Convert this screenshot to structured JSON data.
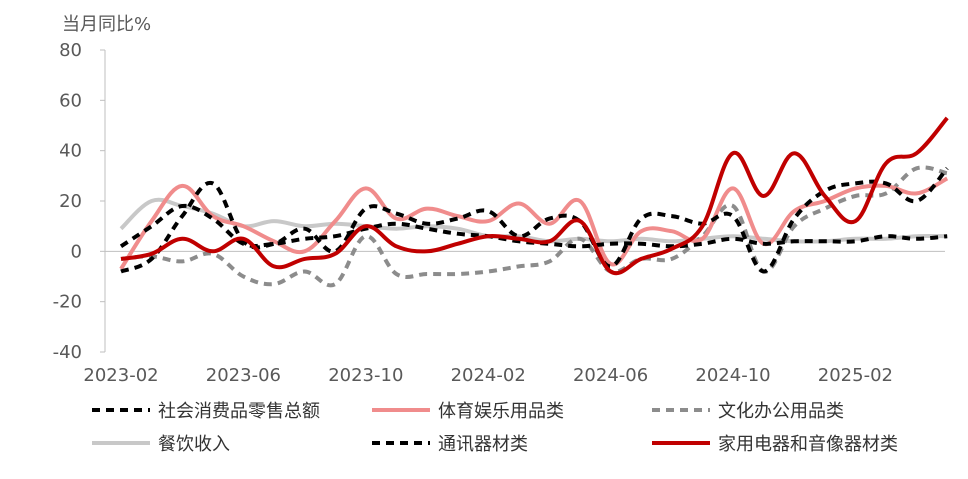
{
  "chart_data": {
    "type": "line",
    "ylabel": "当月同比%",
    "xlabel": "",
    "ylim": [
      -40,
      80
    ],
    "yticks": [
      -40,
      -20,
      0,
      20,
      40,
      60,
      80
    ],
    "x": [
      "2023-02",
      "2023-03",
      "2023-04",
      "2023-05",
      "2023-06",
      "2023-07",
      "2023-08",
      "2023-09",
      "2023-10",
      "2023-11",
      "2023-12",
      "2024-01",
      "2024-02",
      "2024-03",
      "2024-04",
      "2024-05",
      "2024-06",
      "2024-07",
      "2024-08",
      "2024-09",
      "2024-10",
      "2024-11",
      "2024-12",
      "2025-01",
      "2025-02",
      "2025-03",
      "2025-04",
      "2025-05"
    ],
    "xtick_labels": [
      "2023-02",
      "2023-06",
      "2023-10",
      "2024-02",
      "2024-06",
      "2024-10",
      "2025-02"
    ],
    "grid": false,
    "legend_position": "bottom",
    "series": [
      {
        "name": "社会消费品零售总额",
        "color": "#000000",
        "dash": "8,6",
        "width": 4,
        "values": [
          2,
          10,
          18,
          13,
          3,
          3,
          5,
          6,
          9,
          11,
          9,
          7,
          6,
          4,
          3,
          2,
          3,
          3,
          2,
          3,
          5,
          3,
          4,
          4,
          4,
          6,
          5,
          6
        ]
      },
      {
        "name": "体育娱乐用品类",
        "color": "#f08c8c",
        "dash": "",
        "width": 4,
        "values": [
          -7,
          12,
          26,
          14,
          10,
          4,
          0,
          12,
          25,
          13,
          17,
          14,
          12,
          19,
          11,
          20,
          -5,
          8,
          8,
          5,
          25,
          3,
          16,
          20,
          25,
          26,
          23,
          29
        ]
      },
      {
        "name": "文化办公用品类",
        "color": "#8c8c8c",
        "dash": "8,6",
        "width": 4,
        "values": [
          -3,
          -2,
          -4,
          -1,
          -10,
          -13,
          -8,
          -13,
          6,
          -9,
          -9,
          -9,
          -8,
          -6,
          -4,
          5,
          -8,
          -3,
          -3,
          6,
          18,
          -8,
          10,
          17,
          22,
          23,
          33,
          31
        ]
      },
      {
        "name": "餐饮收入",
        "color": "#c8c8c8",
        "dash": "",
        "width": 4,
        "values": [
          9,
          20,
          18,
          15,
          10,
          12,
          10,
          11,
          10,
          9,
          10,
          9,
          6,
          6,
          4,
          5,
          4,
          5,
          4,
          5,
          6,
          5,
          4,
          4,
          5,
          5,
          6,
          6
        ]
      },
      {
        "name": "通讯器材类",
        "color": "#000000",
        "dash": "8,6",
        "width": 4,
        "values": [
          -8,
          -3,
          14,
          27,
          4,
          3,
          9,
          0,
          17,
          15,
          11,
          13,
          16,
          6,
          13,
          12,
          -6,
          13,
          14,
          11,
          14,
          -8,
          13,
          24,
          27,
          27,
          20,
          33
        ]
      },
      {
        "name": "家用电器和音像器材类",
        "color": "#c00000",
        "dash": "",
        "width": 4,
        "values": [
          -3,
          -1,
          5,
          0,
          5,
          -6,
          -3,
          -1,
          10,
          2,
          0,
          3,
          6,
          5,
          4,
          12,
          -8,
          -3,
          1,
          10,
          39,
          22,
          39,
          22,
          12,
          35,
          39,
          53
        ]
      }
    ]
  }
}
